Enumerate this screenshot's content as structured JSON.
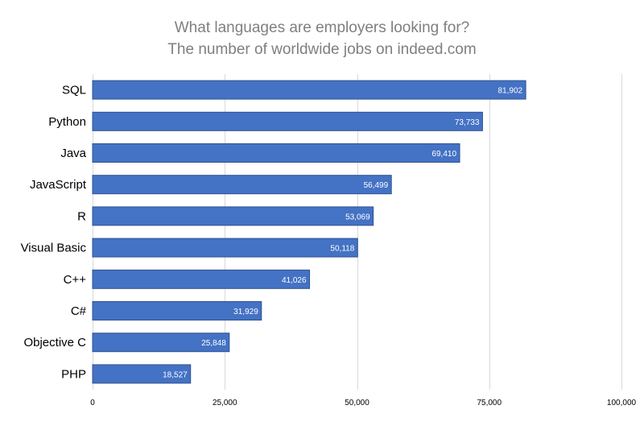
{
  "chart_data": {
    "type": "bar",
    "orientation": "horizontal",
    "title_lines": [
      "What languages are employers looking for?",
      "The number of worldwide jobs on indeed.com"
    ],
    "categories": [
      "SQL",
      "Python",
      "Java",
      "JavaScript",
      "R",
      "Visual Basic",
      "C++",
      "C#",
      "Objective C",
      "PHP"
    ],
    "values": [
      81902,
      73733,
      69410,
      56499,
      53069,
      50118,
      41026,
      31929,
      25848,
      18527
    ],
    "value_labels": [
      "81,902",
      "73,733",
      "69,410",
      "56,499",
      "53,069",
      "50,118",
      "41,026",
      "31,929",
      "25,848",
      "18,527"
    ],
    "xlim": [
      0,
      100000
    ],
    "xticks": [
      0,
      25000,
      50000,
      75000,
      100000
    ],
    "xtick_labels": [
      "0",
      "25,000",
      "50,000",
      "75,000",
      "100,000"
    ],
    "xlabel": "",
    "ylabel": "",
    "grid": "vertical",
    "legend": "none",
    "bar_color": "#4472c4",
    "bar_border_color": "#2f528f",
    "grid_color": "#d9d9d9"
  }
}
